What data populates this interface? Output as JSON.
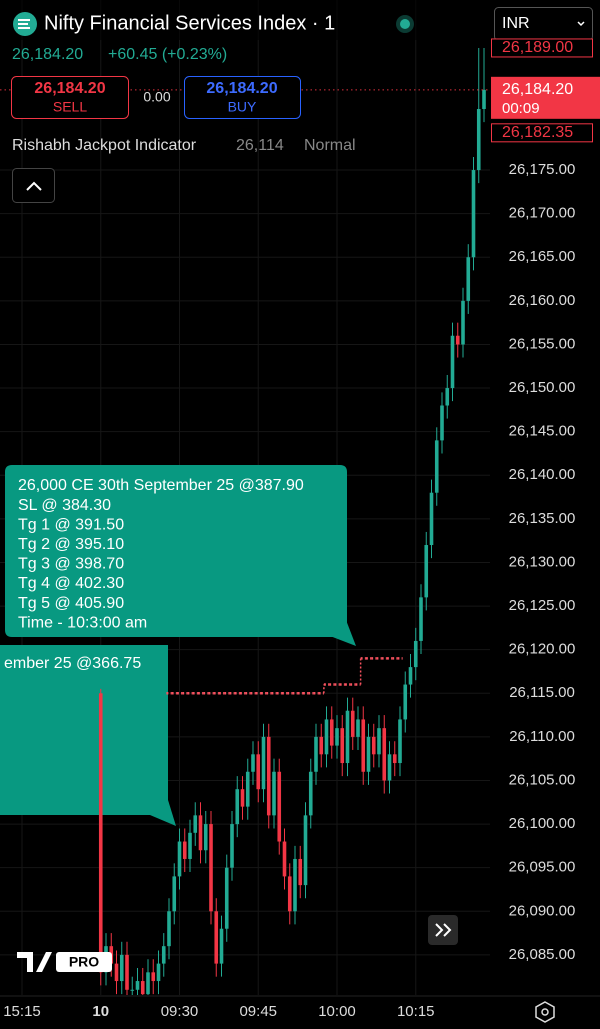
{
  "header": {
    "title": "Nifty Financial Services Index · 1",
    "currency": "INR",
    "last": "26,184.20",
    "change": "+60.45 (+0.23%)"
  },
  "order_panel": {
    "sell_price": "26,184.20",
    "sell": "SELL",
    "spread": "0.00",
    "buy_price": "26,184.20",
    "buy": "BUY"
  },
  "indicator": {
    "name": "Rishabh Jackpot Indicator",
    "value": "26,114",
    "mode": "Normal"
  },
  "annotations": [
    {
      "lines": [
        "26,000 CE 30th September 25 @387.90",
        "SL   @ 384.30",
        "Tg 1 @ 391.50",
        "Tg 2 @ 395.10",
        "Tg 3 @ 398.70",
        "Tg 4 @ 402.30",
        "Tg 5 @ 405.90",
        "Time - 10:3:00 am"
      ]
    },
    {
      "lines": [
        "ember 25 @366.75"
      ]
    }
  ],
  "chart_data": {
    "type": "candlestick",
    "categories": [
      "15:15",
      null,
      null,
      null,
      null,
      null,
      null,
      null,
      null,
      null,
      null,
      null,
      null,
      null,
      null,
      "10",
      null,
      null,
      null,
      null,
      null,
      null,
      null,
      null,
      null,
      null,
      null,
      null,
      null,
      null,
      "09:30",
      null,
      null,
      null,
      null,
      null,
      null,
      null,
      null,
      null,
      null,
      null,
      null,
      null,
      null,
      "09:45",
      null,
      null,
      null,
      null,
      null,
      null,
      null,
      null,
      null,
      null,
      null,
      null,
      null,
      null,
      "10:00",
      null,
      null,
      null,
      null,
      null,
      null,
      null,
      null,
      null,
      null,
      null,
      null,
      null,
      null,
      "10:15",
      null,
      null,
      null,
      null,
      null,
      null,
      null,
      null,
      null,
      null,
      null,
      null,
      null
    ],
    "open": [
      null,
      null,
      null,
      null,
      null,
      null,
      null,
      null,
      null,
      null,
      null,
      null,
      null,
      null,
      null,
      26115,
      26083,
      26086,
      26084,
      26082,
      26085,
      26081,
      26081,
      26082,
      26080.5,
      26083,
      26082,
      26084,
      26086,
      26090,
      26094,
      26098,
      26096,
      26099,
      26101,
      26097,
      26100,
      26090,
      26084,
      26088,
      26095,
      26100,
      26104,
      26102,
      26106,
      26108,
      26104,
      26110,
      26101,
      26106,
      26098,
      26094,
      26090,
      26096,
      26093,
      26101,
      26106,
      26110,
      26108,
      26112,
      26109,
      26111,
      26107,
      26113,
      26110,
      26112,
      26106,
      26110,
      26108,
      26111,
      26105,
      26108,
      26107,
      26112,
      26116,
      26118,
      26121,
      26126,
      26132,
      26138,
      26144,
      26148,
      26150,
      26156,
      26155,
      26160,
      26165,
      26175,
      26182
    ],
    "high": [
      null,
      null,
      null,
      null,
      null,
      null,
      null,
      null,
      null,
      null,
      null,
      null,
      null,
      null,
      null,
      26115.5,
      26087.5,
      26087.5,
      26085.5,
      26086.5,
      26086.5,
      26082.5,
      26083.5,
      26083.5,
      26084.5,
      26084.5,
      26085.5,
      26087.5,
      26091.5,
      26095.5,
      26099.5,
      26099.5,
      26100.5,
      26102.5,
      26102.5,
      26101.5,
      26101.5,
      26091.5,
      26089.5,
      26096.5,
      26101.5,
      26105.5,
      26105.5,
      26107.5,
      26109.5,
      26109.5,
      26111.5,
      26111.5,
      26107.5,
      26107.5,
      26099.5,
      26095.5,
      26097.5,
      26097.5,
      26102.5,
      26107.5,
      26111.5,
      26111.5,
      26113.5,
      26113.5,
      26112.5,
      26112.5,
      26114.5,
      26114.5,
      26113.5,
      26113.5,
      26111.5,
      26111.5,
      26112.5,
      26112.5,
      26109.5,
      26109.5,
      26113.5,
      26117.5,
      26119.5,
      26122.5,
      26127.5,
      26133.5,
      26139.5,
      26145.5,
      26149.5,
      26151.5,
      26157.5,
      26157.5,
      26161.5,
      26166.5,
      26176.5,
      26189,
      26189
    ],
    "low": [
      null,
      null,
      null,
      null,
      null,
      null,
      null,
      null,
      null,
      null,
      null,
      null,
      null,
      null,
      null,
      26081.5,
      26081.5,
      26082.5,
      26080.5,
      26080.5,
      26079.5,
      26079.5,
      26079.5,
      26079,
      26079,
      26080.5,
      26080.5,
      26082.5,
      26084.5,
      26088.5,
      26092.5,
      26094.5,
      26094.5,
      26097.5,
      26095.5,
      26095.5,
      26088.5,
      26082.5,
      26082.5,
      26086.5,
      26093.5,
      26098.5,
      26100.5,
      26100.5,
      26104.5,
      26102.5,
      26102.5,
      26099.5,
      26099.5,
      26096.5,
      26092.5,
      26088.5,
      26088.5,
      26091.5,
      26091.5,
      26099.5,
      26104.5,
      26106.5,
      26106.5,
      26107.5,
      26107.5,
      26105.5,
      26105.5,
      26108.5,
      26108.5,
      26104.5,
      26104.5,
      26106.5,
      26106.5,
      26103.5,
      26103.5,
      26105.5,
      26105.5,
      26110.5,
      26114.5,
      26116.5,
      26119.5,
      26124.5,
      26130.5,
      26136.5,
      26142.5,
      26146.5,
      26148.5,
      26153.5,
      26153.5,
      26158.5,
      26163.5,
      26173.5,
      26180.5
    ],
    "close": [
      null,
      null,
      null,
      null,
      null,
      null,
      null,
      null,
      null,
      null,
      null,
      null,
      null,
      null,
      null,
      26083,
      26086,
      26084,
      26082,
      26085,
      26081,
      26081,
      26082,
      26080.5,
      26083,
      26082,
      26084,
      26086,
      26090,
      26094,
      26098,
      26096,
      26099,
      26101,
      26097,
      26100,
      26090,
      26084,
      26088,
      26095,
      26100,
      26104,
      26102,
      26106,
      26108,
      26104,
      26110,
      26101,
      26106,
      26098,
      26094,
      26090,
      26096,
      26093,
      26101,
      26106,
      26110,
      26108,
      26112,
      26109,
      26111,
      26107,
      26113,
      26110,
      26112,
      26106,
      26110,
      26108,
      26111,
      26105,
      26108,
      26107,
      26112,
      26116,
      26118,
      26121,
      26126,
      26132,
      26138,
      26144,
      26148,
      26150,
      26156,
      26155,
      26160,
      26165,
      26175,
      26182,
      26184.2
    ],
    "up_color": "#22ab94",
    "down_color": "#f23645",
    "indicator_line": {
      "color": "#f7525f",
      "values": [
        null,
        null,
        null,
        null,
        null,
        null,
        null,
        null,
        null,
        null,
        null,
        null,
        null,
        null,
        null,
        null,
        null,
        null,
        null,
        null,
        null,
        null,
        null,
        null,
        null,
        null,
        null,
        null,
        26115,
        26115,
        26115,
        26115,
        26115,
        26115,
        26115,
        26115,
        26115,
        26115,
        26115,
        26115,
        26115,
        26115,
        26115,
        26115,
        26115,
        26115,
        26115,
        26115,
        26115,
        26115,
        26115,
        26115,
        26115,
        26115,
        26115,
        26115,
        26115,
        26115,
        26116,
        26116,
        26116,
        26116,
        26116,
        26116,
        26116,
        26119,
        26119,
        26119,
        26119,
        26119,
        26119,
        26119,
        26119,
        null,
        null,
        null,
        null,
        null,
        null,
        null,
        null,
        null,
        null,
        null,
        null,
        null,
        null,
        null,
        null
      ]
    },
    "price_labels": [
      {
        "value": 26189,
        "label": "26,189.00"
      },
      {
        "value": 26184.2,
        "label": "26,184.20",
        "time": "00:09"
      },
      {
        "value": 26182.35,
        "label": "26,182.35"
      }
    ],
    "ylim": [
      26080.4,
      26194.5
    ],
    "yticks": [
      {
        "value": 26085,
        "label": "26,085.00"
      },
      {
        "value": 26090,
        "label": "26,090.00"
      },
      {
        "value": 26095,
        "label": "26,095.00"
      },
      {
        "value": 26100,
        "label": "26,100.00"
      },
      {
        "value": 26105,
        "label": "26,105.00"
      },
      {
        "value": 26110,
        "label": "26,110.00"
      },
      {
        "value": 26115,
        "label": "26,115.00"
      },
      {
        "value": 26120,
        "label": "26,120.00"
      },
      {
        "value": 26125,
        "label": "26,125.00"
      },
      {
        "value": 26130,
        "label": "26,130.00"
      },
      {
        "value": 26135,
        "label": "26,135.00"
      },
      {
        "value": 26140,
        "label": "26,140.00"
      },
      {
        "value": 26145,
        "label": "26,145.00"
      },
      {
        "value": 26150,
        "label": "26,150.00"
      },
      {
        "value": 26155,
        "label": "26,155.00"
      },
      {
        "value": 26160,
        "label": "26,160.00"
      },
      {
        "value": 26165,
        "label": "26,165.00"
      },
      {
        "value": 26170,
        "label": "26,170.00"
      },
      {
        "value": 26175,
        "label": "26,175.00"
      }
    ],
    "grid": true
  }
}
